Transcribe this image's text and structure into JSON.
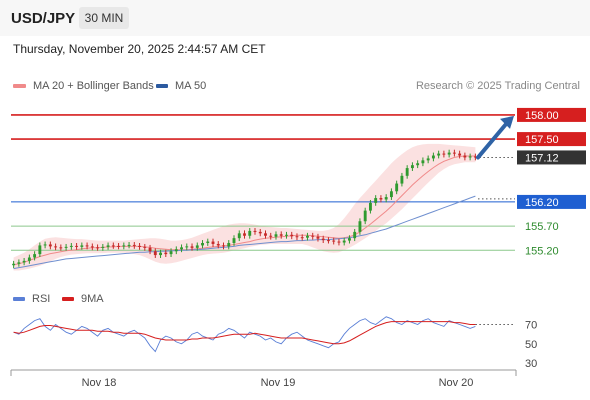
{
  "header": {
    "pair": "USD/JPY",
    "timeframe": "30 MIN",
    "datetime": "Thursday, November 20, 2025 2:44:57 AM CET"
  },
  "legend": {
    "ma20_label": "MA 20 + Bollinger Bands",
    "ma50_label": "MA 50",
    "credit": "Research © 2025 Trading Central",
    "rsi_label": "RSI",
    "rsi_ma_label": "9MA"
  },
  "colors": {
    "resistance": "#d61f1f",
    "support_line": "#8cc88c",
    "support_text": "#2e8b2e",
    "pivot": "#1f5fd1",
    "current": "#333333",
    "ma20": "#f08a8a",
    "ma50": "#6f8fcf",
    "band_fill": "#fbe1e1",
    "candle_up": "#2f9a2f",
    "candle_down": "#c62a2a",
    "arrow": "#2f63a6",
    "rsi": "#5a7fd6",
    "rsi_ma": "#d61f1f"
  },
  "chart_data": [
    {
      "type": "candlestick",
      "x_ticks": [
        "Nov 18",
        "Nov 19",
        "Nov 20"
      ],
      "ylim": [
        154.75,
        158.35
      ],
      "levels": [
        {
          "name": "resistance-2",
          "value": 158.0,
          "label": "158.00",
          "kind": "resistance"
        },
        {
          "name": "resistance-1",
          "value": 157.5,
          "label": "157.50",
          "kind": "resistance"
        },
        {
          "name": "last-price",
          "value": 157.12,
          "label": "157.12",
          "kind": "current"
        },
        {
          "name": "pivot",
          "value": 156.2,
          "label": "156.20",
          "kind": "pivot"
        },
        {
          "name": "support-1",
          "value": 155.7,
          "label": "155.70",
          "kind": "support"
        },
        {
          "name": "support-2",
          "value": 155.2,
          "label": "155.20",
          "kind": "support"
        }
      ],
      "close": [
        154.92,
        154.95,
        154.98,
        155.05,
        155.12,
        155.3,
        155.32,
        155.28,
        155.26,
        155.25,
        155.27,
        155.29,
        155.27,
        155.3,
        155.28,
        155.26,
        155.25,
        155.27,
        155.3,
        155.29,
        155.28,
        155.3,
        155.31,
        155.29,
        155.27,
        155.25,
        155.18,
        155.1,
        155.15,
        155.12,
        155.18,
        155.22,
        155.26,
        155.28,
        155.25,
        155.3,
        155.35,
        155.38,
        155.33,
        155.3,
        155.28,
        155.35,
        155.45,
        155.55,
        155.5,
        155.6,
        155.58,
        155.55,
        155.5,
        155.48,
        155.53,
        155.5,
        155.52,
        155.49,
        155.47,
        155.46,
        155.5,
        155.48,
        155.44,
        155.41,
        155.4,
        155.38,
        155.36,
        155.4,
        155.45,
        155.58,
        155.8,
        156.02,
        156.18,
        156.28,
        156.25,
        156.3,
        156.42,
        156.58,
        156.74,
        156.9,
        156.96,
        157.0,
        157.06,
        157.1,
        157.16,
        157.2,
        157.18,
        157.22,
        157.2,
        157.16,
        157.12,
        157.14,
        157.12
      ],
      "ma20": [
        154.9,
        154.92,
        154.95,
        154.99,
        155.03,
        155.07,
        155.1,
        155.13,
        155.15,
        155.17,
        155.19,
        155.2,
        155.21,
        155.23,
        155.24,
        155.25,
        155.25,
        155.26,
        155.27,
        155.27,
        155.28,
        155.28,
        155.28,
        155.28,
        155.28,
        155.27,
        155.26,
        155.24,
        155.23,
        155.22,
        155.21,
        155.21,
        155.21,
        155.21,
        155.22,
        155.23,
        155.24,
        155.26,
        155.27,
        155.28,
        155.29,
        155.3,
        155.32,
        155.34,
        155.36,
        155.38,
        155.41,
        155.43,
        155.45,
        155.46,
        155.47,
        155.48,
        155.49,
        155.5,
        155.51,
        155.51,
        155.51,
        155.5,
        155.49,
        155.48,
        155.47,
        155.46,
        155.45,
        155.46,
        155.48,
        155.52,
        155.58,
        155.66,
        155.74,
        155.83,
        155.92,
        156.01,
        156.11,
        156.22,
        156.33,
        156.44,
        156.55,
        156.65,
        156.74,
        156.83,
        156.91,
        156.98,
        157.04,
        157.08,
        157.12,
        157.14,
        157.15,
        157.15,
        157.15
      ],
      "band_upper": [
        155.05,
        155.1,
        155.15,
        155.22,
        155.3,
        155.38,
        155.44,
        155.46,
        155.47,
        155.46,
        155.45,
        155.44,
        155.43,
        155.43,
        155.42,
        155.41,
        155.4,
        155.4,
        155.4,
        155.4,
        155.4,
        155.4,
        155.41,
        155.42,
        155.43,
        155.44,
        155.45,
        155.45,
        155.44,
        155.42,
        155.4,
        155.4,
        155.41,
        155.43,
        155.46,
        155.5,
        155.54,
        155.58,
        155.62,
        155.66,
        155.7,
        155.73,
        155.75,
        155.76,
        155.76,
        155.75,
        155.73,
        155.71,
        155.69,
        155.68,
        155.67,
        155.66,
        155.66,
        155.65,
        155.64,
        155.63,
        155.62,
        155.61,
        155.6,
        155.6,
        155.62,
        155.66,
        155.74,
        155.86,
        156.0,
        156.15,
        156.28,
        156.4,
        156.52,
        156.64,
        156.76,
        156.88,
        157.0,
        157.1,
        157.19,
        157.27,
        157.33,
        157.37,
        157.39,
        157.4,
        157.4,
        157.4,
        157.39,
        157.38,
        157.37,
        157.36,
        157.35,
        157.34,
        157.33
      ],
      "band_lower": [
        154.78,
        154.78,
        154.8,
        154.82,
        154.85,
        154.88,
        154.92,
        154.97,
        155.02,
        155.06,
        155.09,
        155.11,
        155.12,
        155.13,
        155.14,
        155.14,
        155.14,
        155.14,
        155.15,
        155.15,
        155.15,
        155.15,
        155.14,
        155.12,
        155.1,
        155.06,
        155.01,
        154.96,
        154.93,
        154.92,
        154.93,
        154.95,
        154.98,
        155.01,
        155.04,
        155.07,
        155.1,
        155.12,
        155.13,
        155.14,
        155.15,
        155.17,
        155.2,
        155.22,
        155.24,
        155.27,
        155.29,
        155.31,
        155.32,
        155.33,
        155.33,
        155.33,
        155.33,
        155.33,
        155.33,
        155.33,
        155.3,
        155.26,
        155.22,
        155.18,
        155.16,
        155.15,
        155.16,
        155.2,
        155.25,
        155.31,
        155.38,
        155.45,
        155.52,
        155.6,
        155.68,
        155.76,
        155.85,
        155.95,
        156.05,
        156.16,
        156.27,
        156.38,
        156.49,
        156.6,
        156.7,
        156.8,
        156.88,
        156.94,
        156.98,
        157.0,
        157.02,
        157.02,
        157.02
      ],
      "ma50": [
        154.82,
        154.84,
        154.86,
        154.88,
        154.9,
        154.92,
        154.94,
        154.96,
        154.98,
        155.0,
        155.02,
        155.03,
        155.04,
        155.05,
        155.06,
        155.07,
        155.08,
        155.09,
        155.1,
        155.11,
        155.12,
        155.13,
        155.14,
        155.15,
        155.16,
        155.16,
        155.17,
        155.17,
        155.18,
        155.18,
        155.19,
        155.19,
        155.2,
        155.2,
        155.21,
        155.21,
        155.22,
        155.23,
        155.24,
        155.25,
        155.26,
        155.27,
        155.28,
        155.3,
        155.31,
        155.32,
        155.33,
        155.34,
        155.35,
        155.36,
        155.37,
        155.38,
        155.38,
        155.39,
        155.4,
        155.4,
        155.41,
        155.41,
        155.42,
        155.42,
        155.42,
        155.43,
        155.44,
        155.45,
        155.46,
        155.48,
        155.5,
        155.52,
        155.55,
        155.58,
        155.61,
        155.64,
        155.68,
        155.72,
        155.76,
        155.8,
        155.84,
        155.88,
        155.92,
        155.96,
        156.0,
        156.04,
        156.08,
        156.12,
        156.16,
        156.2,
        156.24,
        156.28,
        156.32
      ]
    },
    {
      "type": "line",
      "name": "rsi-panel",
      "y_ticks": [
        70,
        50,
        30
      ],
      "ylim": [
        25,
        85
      ],
      "rsi": [
        62,
        60,
        66,
        70,
        74,
        76,
        68,
        64,
        70,
        66,
        62,
        60,
        64,
        68,
        66,
        62,
        58,
        64,
        66,
        62,
        60,
        58,
        62,
        64,
        60,
        56,
        48,
        42,
        54,
        58,
        56,
        52,
        50,
        54,
        60,
        62,
        58,
        56,
        54,
        60,
        62,
        66,
        64,
        60,
        56,
        62,
        60,
        58,
        54,
        56,
        52,
        50,
        56,
        60,
        62,
        58,
        54,
        52,
        50,
        48,
        46,
        50,
        52,
        60,
        66,
        70,
        74,
        76,
        72,
        70,
        74,
        78,
        76,
        72,
        70,
        74,
        72,
        70,
        74,
        76,
        72,
        70,
        68,
        74,
        72,
        70,
        68,
        66,
        68
      ],
      "rsi_ma": [
        62,
        61,
        62,
        64,
        66,
        68,
        69,
        69,
        68,
        67,
        66,
        65,
        64,
        64,
        64,
        64,
        63,
        63,
        63,
        62,
        62,
        61,
        61,
        61,
        61,
        60,
        58,
        56,
        55,
        54,
        54,
        54,
        54,
        54,
        55,
        55,
        56,
        56,
        56,
        57,
        58,
        59,
        60,
        60,
        60,
        60,
        61,
        60,
        59,
        58,
        57,
        56,
        56,
        56,
        56,
        56,
        55,
        54,
        53,
        52,
        51,
        50,
        50,
        51,
        53,
        56,
        59,
        62,
        65,
        68,
        70,
        72,
        73,
        73,
        73,
        73,
        73,
        73,
        73,
        73,
        73,
        73,
        73,
        73,
        72,
        72,
        71,
        70,
        70
      ]
    }
  ]
}
